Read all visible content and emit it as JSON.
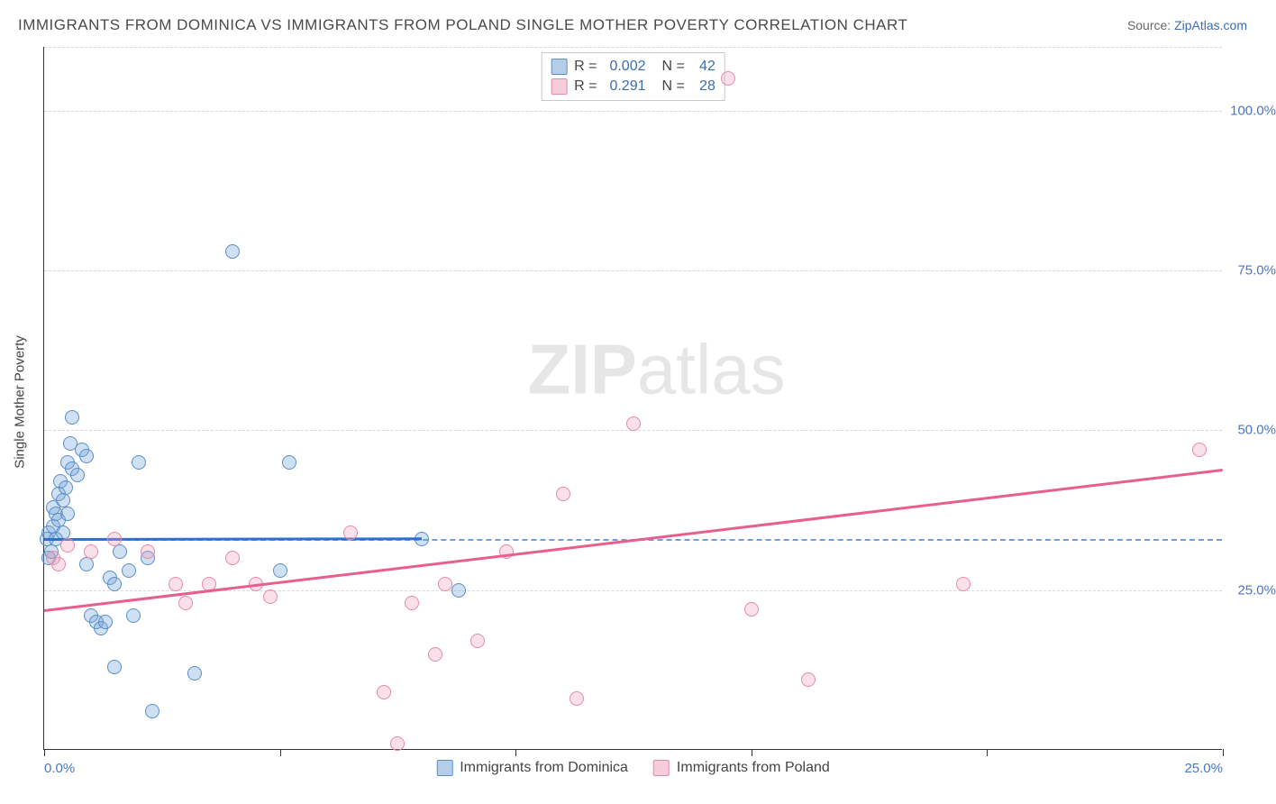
{
  "title": "IMMIGRANTS FROM DOMINICA VS IMMIGRANTS FROM POLAND SINGLE MOTHER POVERTY CORRELATION CHART",
  "source_prefix": "Source: ",
  "source_name": "ZipAtlas.com",
  "watermark_bold": "ZIP",
  "watermark_light": "atlas",
  "chart": {
    "type": "scatter",
    "ylabel": "Single Mother Poverty",
    "xlim": [
      0,
      25
    ],
    "ylim": [
      0,
      110
    ],
    "xticks": [
      0,
      5,
      10,
      15,
      20,
      25
    ],
    "xtick_labels": {
      "0": "0.0%",
      "25": "25.0%"
    },
    "yticks": [
      25,
      50,
      75,
      100
    ],
    "ytick_labels": {
      "25": "25.0%",
      "50": "50.0%",
      "75": "75.0%",
      "100": "100.0%"
    },
    "reference_y": 33,
    "plot_bg": "#ffffff",
    "grid_color": "#d8d8d8",
    "axis_color": "#333333",
    "tick_label_color": "#4a77c4",
    "series": [
      {
        "id": "dominica",
        "label": "Immigrants from Dominica",
        "color_fill": "rgba(118,165,217,0.35)",
        "color_stroke": "#5a8dc9",
        "trend_color": "#2d6fd2",
        "R": "0.002",
        "N": "42",
        "trend": {
          "x0": 0,
          "y0": 33.1,
          "x1": 8,
          "y1": 33.2
        },
        "points": [
          [
            0.05,
            33
          ],
          [
            0.1,
            34
          ],
          [
            0.1,
            30
          ],
          [
            0.15,
            31
          ],
          [
            0.2,
            38
          ],
          [
            0.2,
            35
          ],
          [
            0.25,
            37
          ],
          [
            0.25,
            33
          ],
          [
            0.3,
            40
          ],
          [
            0.3,
            36
          ],
          [
            0.35,
            42
          ],
          [
            0.4,
            39
          ],
          [
            0.4,
            34
          ],
          [
            0.45,
            41
          ],
          [
            0.5,
            45
          ],
          [
            0.5,
            37
          ],
          [
            0.55,
            48
          ],
          [
            0.6,
            52
          ],
          [
            0.6,
            44
          ],
          [
            0.7,
            43
          ],
          [
            0.8,
            47
          ],
          [
            0.9,
            46
          ],
          [
            0.9,
            29
          ],
          [
            1.0,
            21
          ],
          [
            1.1,
            20
          ],
          [
            1.2,
            19
          ],
          [
            1.3,
            20
          ],
          [
            1.4,
            27
          ],
          [
            1.5,
            26
          ],
          [
            1.6,
            31
          ],
          [
            1.8,
            28
          ],
          [
            1.9,
            21
          ],
          [
            2.0,
            45
          ],
          [
            2.2,
            30
          ],
          [
            2.3,
            6
          ],
          [
            1.5,
            13
          ],
          [
            3.2,
            12
          ],
          [
            4.0,
            78
          ],
          [
            5.2,
            45
          ],
          [
            5.0,
            28
          ],
          [
            8.8,
            25
          ],
          [
            8.0,
            33
          ]
        ]
      },
      {
        "id": "poland",
        "label": "Immigrants from Poland",
        "color_fill": "rgba(238,153,178,0.30)",
        "color_stroke": "#e48aa8",
        "trend_color": "#e85f8e",
        "R": "0.291",
        "N": "28",
        "trend": {
          "x0": 0,
          "y0": 22,
          "x1": 25,
          "y1": 44
        },
        "points": [
          [
            0.2,
            30
          ],
          [
            0.3,
            29
          ],
          [
            0.5,
            32
          ],
          [
            1.0,
            31
          ],
          [
            1.5,
            33
          ],
          [
            2.2,
            31
          ],
          [
            2.8,
            26
          ],
          [
            3.0,
            23
          ],
          [
            3.5,
            26
          ],
          [
            4.0,
            30
          ],
          [
            4.5,
            26
          ],
          [
            4.8,
            24
          ],
          [
            6.5,
            34
          ],
          [
            7.2,
            9
          ],
          [
            7.5,
            1
          ],
          [
            7.8,
            23
          ],
          [
            8.3,
            15
          ],
          [
            8.5,
            26
          ],
          [
            9.2,
            17
          ],
          [
            9.8,
            31
          ],
          [
            11.0,
            40
          ],
          [
            11.3,
            8
          ],
          [
            12.5,
            51
          ],
          [
            14.5,
            105
          ],
          [
            15.0,
            22
          ],
          [
            16.2,
            11
          ],
          [
            19.5,
            26
          ],
          [
            24.5,
            47
          ]
        ]
      }
    ]
  }
}
